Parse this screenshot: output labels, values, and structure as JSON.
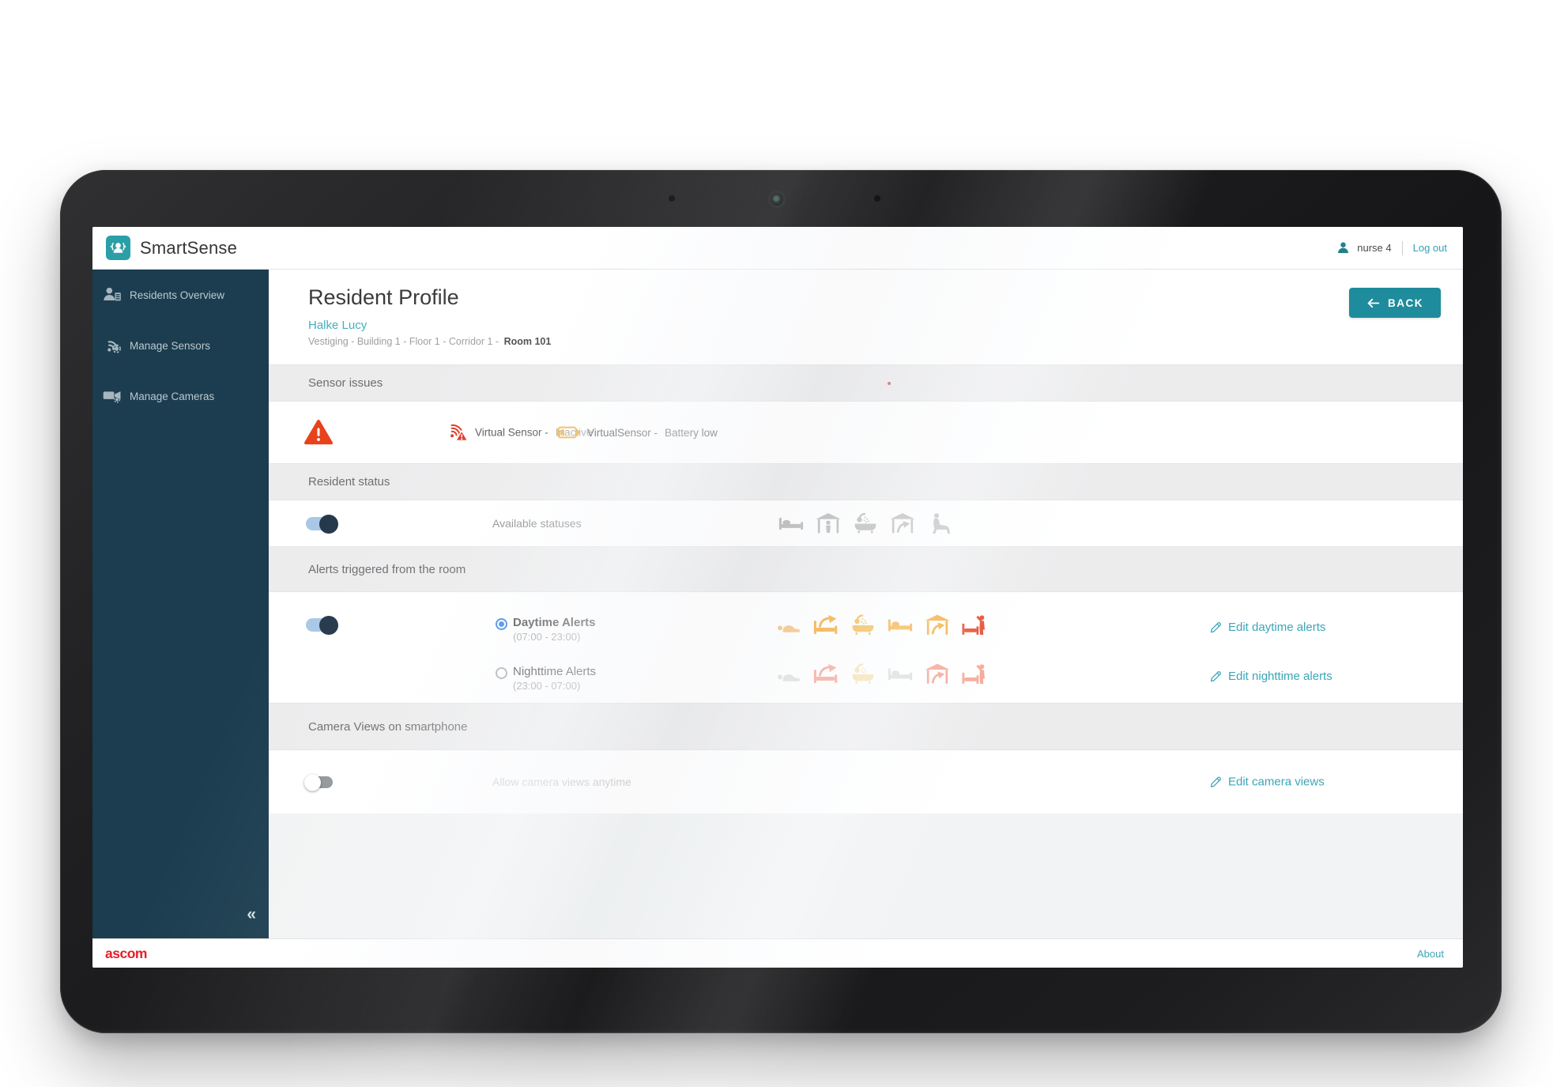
{
  "app": {
    "title": "SmartSense"
  },
  "header": {
    "user": "nurse 4",
    "logout": "Log out"
  },
  "sidebar": {
    "items": [
      {
        "label": "Residents Overview"
      },
      {
        "label": "Manage Sensors"
      },
      {
        "label": "Manage Cameras"
      }
    ],
    "collapse_glyph": "«"
  },
  "page": {
    "title": "Resident Profile",
    "resident_name": "Halke Lucy",
    "breadcrumb_path": "Vestiging - Building 1 - Floor 1 - Corridor 1 -",
    "breadcrumb_room": "Room 101",
    "back_label": "BACK"
  },
  "sections": {
    "sensor_issues": {
      "title": "Sensor issues",
      "issues": [
        {
          "icon": "wifi-inactive",
          "label": "Virtual Sensor -",
          "status": "Inactive"
        },
        {
          "icon": "battery-low",
          "label": "VirtualSensor -",
          "status": "Battery low"
        }
      ]
    },
    "resident_status": {
      "title": "Resident status",
      "toggle_on": true,
      "label": "Available statuses",
      "icons": [
        {
          "icon": "bed",
          "name": "in-bed-status",
          "color": "#b9b9b9"
        },
        {
          "icon": "room-person",
          "name": "in-room-status",
          "color": "#b9b9b9"
        },
        {
          "icon": "bath",
          "name": "in-bathroom-status",
          "color": "#b9b9b9"
        },
        {
          "icon": "room-exit",
          "name": "out-of-room-status",
          "color": "#b9b9b9"
        },
        {
          "icon": "chair",
          "name": "in-chair-status",
          "color": "#b9b9b9"
        }
      ]
    },
    "alerts": {
      "title": "Alerts triggered from the room",
      "toggle_on": true,
      "daytime": {
        "label": "Daytime Alerts",
        "time": "(07:00 - 23:00)",
        "selected": true,
        "edit": "Edit daytime alerts",
        "icons": [
          {
            "icon": "lying",
            "name": "lying-down-day",
            "color": "#f6c181"
          },
          {
            "icon": "bed-exit",
            "name": "out-of-bed-day",
            "color": "#f5a428"
          },
          {
            "icon": "bath",
            "name": "bathroom-day",
            "color": "#f2b43c"
          },
          {
            "icon": "bed",
            "name": "in-bed-day",
            "color": "#f5a428"
          },
          {
            "icon": "room-exit",
            "name": "left-room-day",
            "color": "#f5a428"
          },
          {
            "icon": "fall",
            "name": "assistance-day",
            "color": "#e63c1e"
          }
        ]
      },
      "nighttime": {
        "label": "Nighttime Alerts",
        "time": "(23:00 - 07:00)",
        "selected": false,
        "edit": "Edit nighttime alerts",
        "icons": [
          {
            "icon": "lying",
            "name": "lying-down-night",
            "color": "#dedede"
          },
          {
            "icon": "bed-exit",
            "name": "out-of-bed-night",
            "color": "#f79c8d"
          },
          {
            "icon": "bath",
            "name": "bathroom-night",
            "color": "#f6dda6"
          },
          {
            "icon": "bed",
            "name": "in-bed-night",
            "color": "#d9d9d9"
          },
          {
            "icon": "room-exit",
            "name": "left-room-night",
            "color": "#f79c8d"
          },
          {
            "icon": "fall",
            "name": "assistance-night",
            "color": "#f6a393"
          }
        ]
      }
    },
    "camera": {
      "title": "Camera Views on smartphone",
      "toggle_on": false,
      "label": "Allow camera views anytime",
      "edit": "Edit camera views"
    }
  },
  "footer": {
    "brand": "ascom",
    "about": "About"
  },
  "colors": {
    "accent_teal": "#1e8c9c",
    "link_teal": "#3ba6b7",
    "sidebar_bg": "#1b3d4f",
    "warning_red": "#e8421d",
    "battery_yellow": "#f0b44a",
    "alert_orange": "#f5a428",
    "alert_red": "#e63c1e",
    "toggle_track_blue": "#a9c8e7",
    "toggle_knob_navy": "#24384b",
    "radio_blue": "#2f7de1",
    "brand_red": "#e61e28"
  }
}
